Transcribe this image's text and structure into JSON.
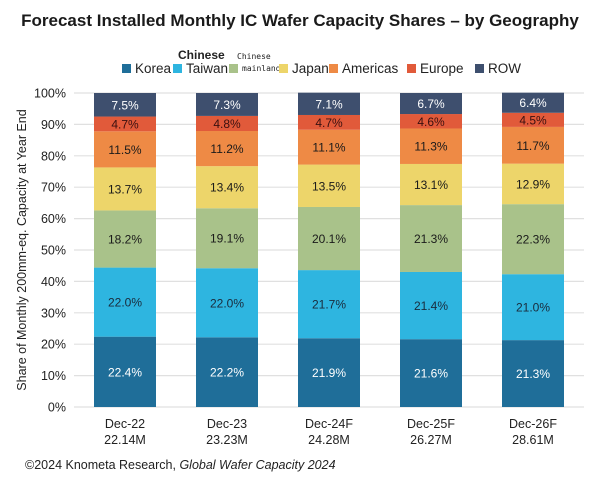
{
  "chart_data": {
    "type": "bar",
    "stacked": true,
    "title": "Forecast Installed Monthly IC Wafer Capacity Shares – by Geography",
    "ylabel": "Share of Monthly 200mm-eq. Capacity at Year End",
    "xlabel": "",
    "ylim": [
      0,
      100
    ],
    "yticks": [
      "0%",
      "10%",
      "20%",
      "30%",
      "40%",
      "50%",
      "60%",
      "70%",
      "80%",
      "90%",
      "100%"
    ],
    "grid": true,
    "legend_position": "top",
    "categories": [
      "Dec-22",
      "Dec-23",
      "Dec-24F",
      "Dec-25F",
      "Dec-26F"
    ],
    "category_totals": [
      "22.14M",
      "23.23M",
      "24.28M",
      "26.27M",
      "28.61M"
    ],
    "series": [
      {
        "name": "Korea",
        "color": "#1f6e99",
        "label_color": "#ffffff",
        "values": [
          22.4,
          22.2,
          21.9,
          21.6,
          21.3
        ]
      },
      {
        "name": "Chinese Taiwan",
        "color": "#2eb5e0",
        "label_color": "#1a2b3c",
        "values": [
          22.0,
          22.0,
          21.7,
          21.4,
          21.0
        ]
      },
      {
        "name": "Chinese mainland",
        "color": "#a9c28a",
        "label_color": "#1a1a1a",
        "values": [
          18.2,
          19.1,
          20.1,
          21.3,
          22.3
        ]
      },
      {
        "name": "Japan",
        "color": "#edd56a",
        "label_color": "#1a1a1a",
        "values": [
          13.7,
          13.4,
          13.5,
          13.1,
          12.9
        ]
      },
      {
        "name": "Americas",
        "color": "#ee8a45",
        "label_color": "#1a1a1a",
        "values": [
          11.5,
          11.2,
          11.1,
          11.3,
          11.7
        ]
      },
      {
        "name": "Europe",
        "color": "#e15a3a",
        "label_color": "#3a1010",
        "values": [
          4.7,
          4.8,
          4.7,
          4.6,
          4.5
        ]
      },
      {
        "name": "ROW",
        "color": "#3e4f6e",
        "label_color": "#ffffff",
        "values": [
          7.5,
          7.3,
          7.1,
          6.7,
          6.4
        ]
      }
    ]
  },
  "legend": {
    "items": [
      {
        "label": "Korea",
        "prefix": ""
      },
      {
        "label": "Taiwan",
        "prefix": "Chinese"
      },
      {
        "label": "mainland",
        "prefix": "Chinese"
      },
      {
        "label": "Japan",
        "prefix": ""
      },
      {
        "label": "Americas",
        "prefix": ""
      },
      {
        "label": "Europe",
        "prefix": ""
      },
      {
        "label": "ROW",
        "prefix": ""
      }
    ]
  },
  "footer": {
    "source": "©2024 Knometa Research, ",
    "publication": "Global Wafer Capacity 2024"
  }
}
